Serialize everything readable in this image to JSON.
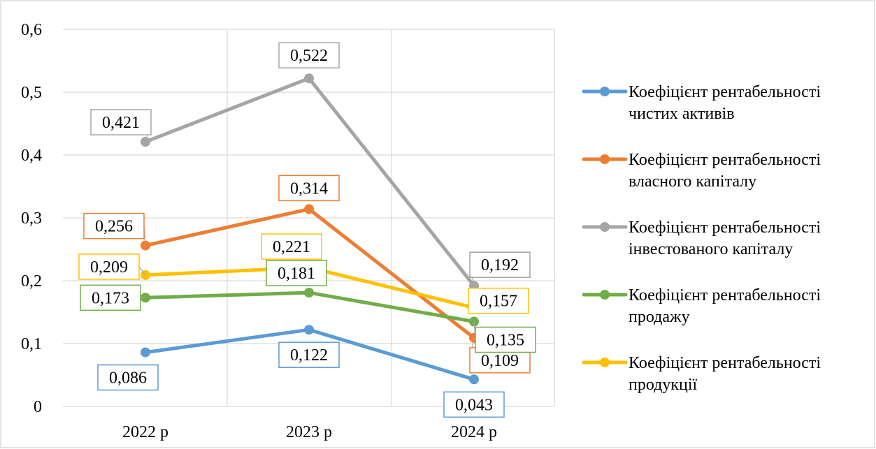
{
  "chart_data": {
    "type": "line",
    "categories": [
      "2022 р",
      "2023 р",
      "2024 р"
    ],
    "ylim": [
      0,
      0.6
    ],
    "yticks": [
      "0",
      "0,1",
      "0,2",
      "0,3",
      "0,4",
      "0,5",
      "0,6"
    ],
    "grid": true,
    "legend_position": "right",
    "series": [
      {
        "name_lines": [
          "Коефіцієнт рентабельності",
          "чистих активів"
        ],
        "color": "#5b9bd5",
        "values": [
          0.086,
          0.122,
          0.043
        ],
        "labels": [
          "0,086",
          "0,122",
          "0,043"
        ]
      },
      {
        "name_lines": [
          "Коефіцієнт рентабельності",
          "власного капіталу"
        ],
        "color": "#ed7d31",
        "values": [
          0.256,
          0.314,
          0.109
        ],
        "labels": [
          "0,256",
          "0,314",
          "0,109"
        ]
      },
      {
        "name_lines": [
          "Коефіцієнт рентабельності",
          "інвестованого капіталу"
        ],
        "color": "#a5a5a5",
        "values": [
          0.421,
          0.522,
          0.192
        ],
        "labels": [
          "0,421",
          "0,522",
          "0,192"
        ]
      },
      {
        "name_lines": [
          "Коефіцієнт рентабельності",
          "продажу"
        ],
        "color": "#70ad47",
        "values": [
          0.173,
          0.181,
          0.135
        ],
        "labels": [
          "0,173",
          "0,181",
          "0,135"
        ]
      },
      {
        "name_lines": [
          "Коефіцієнт рентабельності",
          "продукції"
        ],
        "color": "#ffc000",
        "values": [
          0.209,
          0.221,
          0.157
        ],
        "labels": [
          "0,209",
          "0,221",
          "0,157"
        ]
      }
    ]
  }
}
